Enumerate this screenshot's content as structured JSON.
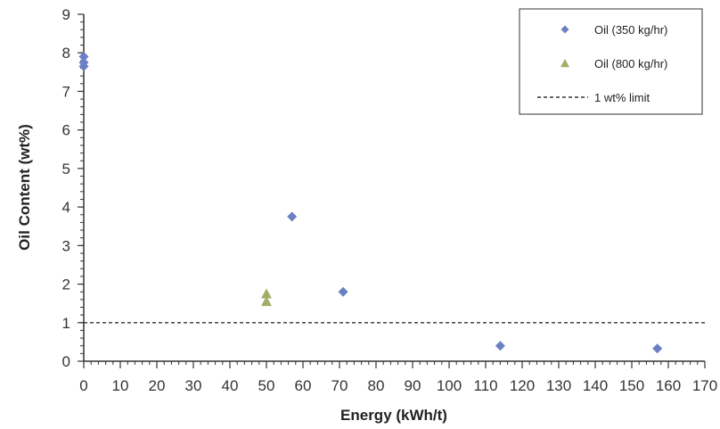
{
  "chart_data": {
    "type": "scatter",
    "xlabel": "Energy (kWh/t)",
    "ylabel": "Oil Content (wt%)",
    "xlim": [
      0,
      170
    ],
    "ylim": [
      0,
      9
    ],
    "xticks": [
      "0",
      "10",
      "20",
      "30",
      "40",
      "50",
      "60",
      "70",
      "80",
      "90",
      "100",
      "110",
      "120",
      "130",
      "140",
      "150",
      "160",
      "170"
    ],
    "yticks": [
      "0",
      "1",
      "2",
      "3",
      "4",
      "5",
      "6",
      "7",
      "8",
      "9"
    ],
    "grid": false,
    "legend_position": "top-right",
    "series": [
      {
        "name": "Oil (350 kg/hr)",
        "marker": "diamond",
        "color": "#6b7fc4",
        "points": [
          {
            "x": 0,
            "y": 7.9
          },
          {
            "x": 0,
            "y": 7.75
          },
          {
            "x": 0,
            "y": 7.65
          },
          {
            "x": 57,
            "y": 3.75
          },
          {
            "x": 71,
            "y": 1.8
          },
          {
            "x": 114,
            "y": 0.4
          },
          {
            "x": 157,
            "y": 0.33
          }
        ]
      },
      {
        "name": "Oil (800 kg/hr)",
        "marker": "triangle",
        "color": "#a3ad68",
        "points": [
          {
            "x": 50,
            "y": 1.75
          },
          {
            "x": 50,
            "y": 1.55
          }
        ]
      }
    ],
    "reference_lines": [
      {
        "name": "1 wt% limit",
        "y": 1.0,
        "style": "dashed",
        "color": "#333333"
      }
    ]
  }
}
